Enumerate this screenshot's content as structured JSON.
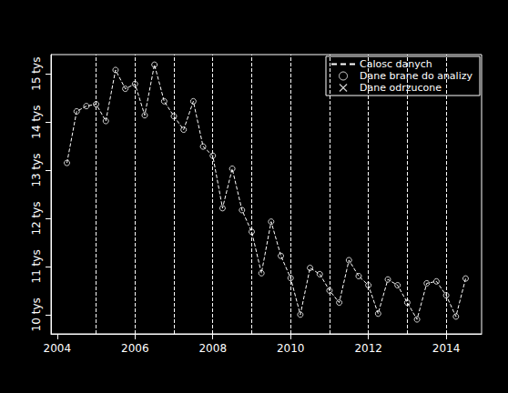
{
  "chart_data": {
    "type": "line",
    "x": [
      2004.25,
      2004.5,
      2004.75,
      2005.0,
      2005.25,
      2005.5,
      2005.75,
      2006.0,
      2006.25,
      2006.5,
      2006.75,
      2007.0,
      2007.25,
      2007.5,
      2007.75,
      2008.0,
      2008.25,
      2008.5,
      2008.75,
      2009.0,
      2009.25,
      2009.5,
      2009.75,
      2010.0,
      2010.25,
      2010.5,
      2010.75,
      2011.0,
      2011.25,
      2011.5,
      2011.75,
      2012.0,
      2012.25,
      2012.5,
      2012.75,
      2013.0,
      2013.25,
      2013.5,
      2013.75,
      2014.0,
      2014.25,
      2014.5
    ],
    "series": [
      {
        "name": "Calosc danych",
        "type": "line",
        "line_style": "dashed",
        "color": "#ffffff",
        "values": [
          13.15,
          14.22,
          14.33,
          14.37,
          14.02,
          15.08,
          14.69,
          14.79,
          14.14,
          15.19,
          14.43,
          14.12,
          13.84,
          14.43,
          13.49,
          13.3,
          12.21,
          13.03,
          12.17,
          11.72,
          10.86,
          11.93,
          11.22,
          10.76,
          10.0,
          10.97,
          10.84,
          10.5,
          10.25,
          11.13,
          10.8,
          10.61,
          10.02,
          10.73,
          10.61,
          10.25,
          9.9,
          10.65,
          10.69,
          10.4,
          9.96,
          10.75
        ]
      },
      {
        "name": "Dane brane do analizy",
        "type": "scatter",
        "marker": "circle",
        "color": "#ffffff",
        "values": [
          13.15,
          14.22,
          14.33,
          14.37,
          14.02,
          15.08,
          14.69,
          14.79,
          14.14,
          15.19,
          14.43,
          14.12,
          13.84,
          14.43,
          13.49,
          13.3,
          12.21,
          13.03,
          12.17,
          11.72,
          10.86,
          11.93,
          11.22,
          10.76,
          10.0,
          10.97,
          10.84,
          10.5,
          10.25,
          11.13,
          10.8,
          10.61,
          10.02,
          10.73,
          10.61,
          10.25,
          9.9,
          10.65,
          10.69,
          10.4,
          9.96,
          10.75
        ]
      },
      {
        "name": "Dane odrzucone",
        "type": "scatter",
        "marker": "x",
        "color": "#ffffff",
        "values": [
          null,
          null,
          null,
          null,
          null,
          null,
          null,
          null,
          null,
          null,
          null,
          null,
          null,
          null,
          null,
          null,
          null,
          null,
          null,
          null,
          null,
          null,
          null,
          null,
          null,
          null,
          null,
          null,
          null,
          null,
          null,
          null,
          null,
          null,
          null,
          null,
          null,
          null,
          null,
          null,
          null,
          null
        ]
      }
    ],
    "vertical_lines": [
      2005,
      2006,
      2007,
      2008,
      2009,
      2010,
      2011,
      2012,
      2013,
      2014
    ],
    "xlim": [
      2003.84,
      2014.91
    ],
    "xticks": [
      2004,
      2006,
      2008,
      2010,
      2012,
      2014
    ],
    "ylim": [
      9.6,
      15.4
    ],
    "yticks": [
      {
        "value": 10,
        "label": "10 tys"
      },
      {
        "value": 11,
        "label": "11 tys"
      },
      {
        "value": 12,
        "label": "12 tys"
      },
      {
        "value": 13,
        "label": "13 tys"
      },
      {
        "value": 14,
        "label": "14 tys"
      },
      {
        "value": 15,
        "label": "15 tys"
      }
    ],
    "grid": false,
    "legend": "top-right"
  }
}
